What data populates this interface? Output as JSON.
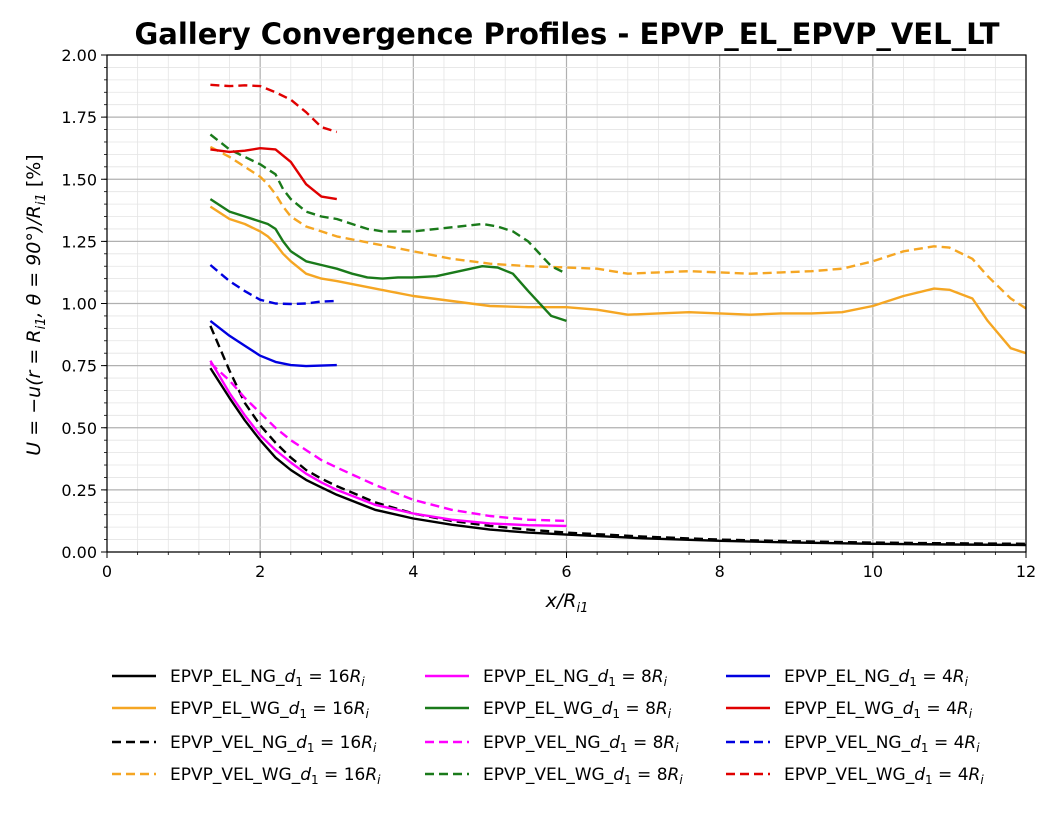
{
  "chart_data": {
    "type": "line",
    "title": "Gallery Convergence Profiles - EPVP_EL_EPVP_VEL_LT",
    "xlabel": "x/R_i1",
    "ylabel": "U = −u(r = R_i1, θ = 90°)/R_i1 [%]",
    "xlim": [
      0,
      12
    ],
    "ylim": [
      0,
      2.0
    ],
    "xticks": [
      0,
      2,
      4,
      6,
      8,
      10,
      12
    ],
    "yticks": [
      0.0,
      0.25,
      0.5,
      0.75,
      1.0,
      1.25,
      1.5,
      1.75,
      2.0
    ],
    "xtick_labels": [
      "0",
      "2",
      "4",
      "6",
      "8",
      "10",
      "12"
    ],
    "ytick_labels": [
      "0.00",
      "0.25",
      "0.50",
      "0.75",
      "1.00",
      "1.25",
      "1.50",
      "1.75",
      "2.00"
    ],
    "grid": true,
    "legend_position": "bottom",
    "series": [
      {
        "name": "EPVP_EL_NG_d1 = 16Ri",
        "color": "#000000",
        "dash": "solid",
        "x": [
          1.35,
          1.6,
          1.8,
          2.0,
          2.2,
          2.4,
          2.6,
          2.8,
          3.0,
          3.5,
          4.0,
          4.5,
          5.0,
          5.5,
          6.0,
          7.0,
          8.0,
          9.0,
          10.0,
          11.0,
          12.0
        ],
        "values": [
          0.74,
          0.62,
          0.53,
          0.45,
          0.38,
          0.33,
          0.29,
          0.26,
          0.23,
          0.17,
          0.135,
          0.11,
          0.09,
          0.078,
          0.07,
          0.055,
          0.045,
          0.038,
          0.033,
          0.03,
          0.028
        ]
      },
      {
        "name": "EPVP_EL_WG_d1 = 16Ri",
        "color": "#f5a623",
        "dash": "solid",
        "x": [
          1.35,
          1.6,
          1.8,
          2.0,
          2.1,
          2.2,
          2.3,
          2.4,
          2.6,
          2.8,
          3.0,
          3.5,
          4.0,
          4.5,
          5.0,
          5.5,
          6.0,
          6.4,
          6.8,
          7.2,
          7.6,
          8.0,
          8.4,
          8.8,
          9.2,
          9.6,
          10.0,
          10.4,
          10.8,
          11.0,
          11.3,
          11.5,
          11.8,
          12.0
        ],
        "values": [
          1.39,
          1.34,
          1.32,
          1.29,
          1.27,
          1.24,
          1.2,
          1.17,
          1.12,
          1.1,
          1.09,
          1.06,
          1.03,
          1.01,
          0.99,
          0.985,
          0.985,
          0.975,
          0.955,
          0.96,
          0.965,
          0.96,
          0.955,
          0.96,
          0.96,
          0.965,
          0.99,
          1.03,
          1.06,
          1.055,
          1.02,
          0.93,
          0.82,
          0.8
        ]
      },
      {
        "name": "EPVP_VEL_NG_d1 = 16Ri",
        "color": "#000000",
        "dash": "dashed",
        "x": [
          1.35,
          1.6,
          1.8,
          2.0,
          2.2,
          2.4,
          2.6,
          2.8,
          3.0,
          3.5,
          4.0,
          4.5,
          5.0,
          5.5,
          6.0,
          7.0,
          8.0,
          9.0,
          10.0,
          11.0,
          12.0
        ],
        "values": [
          0.91,
          0.73,
          0.6,
          0.51,
          0.44,
          0.38,
          0.33,
          0.295,
          0.265,
          0.2,
          0.155,
          0.125,
          0.105,
          0.09,
          0.078,
          0.062,
          0.05,
          0.043,
          0.038,
          0.035,
          0.033
        ]
      },
      {
        "name": "EPVP_VEL_WG_d1 = 16Ri",
        "color": "#f5a623",
        "dash": "dashed",
        "x": [
          1.35,
          1.6,
          1.8,
          2.0,
          2.1,
          2.2,
          2.3,
          2.4,
          2.6,
          2.8,
          3.0,
          3.5,
          4.0,
          4.5,
          5.0,
          5.5,
          6.0,
          6.4,
          6.8,
          7.2,
          7.6,
          8.0,
          8.4,
          8.8,
          9.2,
          9.6,
          10.0,
          10.4,
          10.8,
          11.0,
          11.3,
          11.5,
          11.8,
          12.0
        ],
        "values": [
          1.63,
          1.59,
          1.55,
          1.51,
          1.48,
          1.44,
          1.39,
          1.35,
          1.31,
          1.29,
          1.27,
          1.24,
          1.21,
          1.18,
          1.16,
          1.15,
          1.145,
          1.14,
          1.12,
          1.125,
          1.13,
          1.125,
          1.12,
          1.125,
          1.13,
          1.14,
          1.17,
          1.21,
          1.23,
          1.225,
          1.18,
          1.11,
          1.02,
          0.98
        ]
      },
      {
        "name": "EPVP_EL_NG_d1 = 8Ri",
        "color": "#ff00ff",
        "dash": "solid",
        "x": [
          1.35,
          1.6,
          1.8,
          2.0,
          2.2,
          2.4,
          2.6,
          2.8,
          3.0,
          3.5,
          4.0,
          4.5,
          5.0,
          5.5,
          6.0
        ],
        "values": [
          0.77,
          0.64,
          0.55,
          0.47,
          0.41,
          0.36,
          0.315,
          0.28,
          0.25,
          0.19,
          0.155,
          0.13,
          0.115,
          0.108,
          0.105
        ]
      },
      {
        "name": "EPVP_EL_WG_d1 = 8Ri",
        "color": "#1a7a1a",
        "dash": "solid",
        "x": [
          1.35,
          1.6,
          1.8,
          2.0,
          2.1,
          2.2,
          2.3,
          2.4,
          2.6,
          2.8,
          3.0,
          3.2,
          3.4,
          3.6,
          3.8,
          4.0,
          4.3,
          4.6,
          4.9,
          5.1,
          5.3,
          5.5,
          5.8,
          6.0
        ],
        "values": [
          1.42,
          1.37,
          1.35,
          1.33,
          1.32,
          1.3,
          1.25,
          1.21,
          1.17,
          1.155,
          1.14,
          1.12,
          1.105,
          1.1,
          1.105,
          1.105,
          1.11,
          1.13,
          1.15,
          1.145,
          1.12,
          1.05,
          0.95,
          0.93
        ]
      },
      {
        "name": "EPVP_VEL_NG_d1 = 8Ri",
        "color": "#ff00ff",
        "dash": "dashed",
        "x": [
          1.35,
          1.6,
          1.8,
          2.0,
          2.2,
          2.4,
          2.6,
          2.8,
          3.0,
          3.5,
          4.0,
          4.5,
          5.0,
          5.5,
          6.0
        ],
        "values": [
          0.76,
          0.69,
          0.62,
          0.56,
          0.5,
          0.45,
          0.41,
          0.37,
          0.34,
          0.27,
          0.21,
          0.17,
          0.145,
          0.13,
          0.125
        ]
      },
      {
        "name": "EPVP_VEL_WG_d1 = 8Ri",
        "color": "#1a7a1a",
        "dash": "dashed",
        "x": [
          1.35,
          1.6,
          1.8,
          2.0,
          2.1,
          2.2,
          2.3,
          2.4,
          2.6,
          2.8,
          3.0,
          3.2,
          3.4,
          3.6,
          3.8,
          4.0,
          4.3,
          4.6,
          4.9,
          5.1,
          5.3,
          5.5,
          5.8,
          6.0
        ],
        "values": [
          1.68,
          1.62,
          1.59,
          1.56,
          1.54,
          1.52,
          1.46,
          1.42,
          1.37,
          1.35,
          1.34,
          1.32,
          1.3,
          1.29,
          1.29,
          1.29,
          1.3,
          1.31,
          1.32,
          1.31,
          1.29,
          1.25,
          1.15,
          1.12
        ]
      },
      {
        "name": "EPVP_EL_NG_d1 = 4Ri",
        "color": "#0000e0",
        "dash": "solid",
        "x": [
          1.35,
          1.6,
          1.8,
          2.0,
          2.2,
          2.4,
          2.6,
          2.8,
          3.0
        ],
        "values": [
          0.93,
          0.87,
          0.83,
          0.79,
          0.765,
          0.752,
          0.748,
          0.75,
          0.752
        ]
      },
      {
        "name": "EPVP_EL_WG_d1 = 4Ri",
        "color": "#e00000",
        "dash": "solid",
        "x": [
          1.35,
          1.6,
          1.8,
          2.0,
          2.2,
          2.4,
          2.6,
          2.8,
          3.0
        ],
        "values": [
          1.62,
          1.61,
          1.615,
          1.625,
          1.62,
          1.57,
          1.48,
          1.43,
          1.42
        ]
      },
      {
        "name": "EPVP_VEL_NG_d1 = 4Ri",
        "color": "#0000e0",
        "dash": "dashed",
        "x": [
          1.35,
          1.6,
          1.8,
          2.0,
          2.2,
          2.4,
          2.6,
          2.8,
          3.0
        ],
        "values": [
          1.155,
          1.09,
          1.05,
          1.015,
          1.0,
          0.998,
          1.0,
          1.008,
          1.01
        ]
      },
      {
        "name": "EPVP_VEL_WG_d1 = 4Ri",
        "color": "#e00000",
        "dash": "dashed",
        "x": [
          1.35,
          1.6,
          1.8,
          2.0,
          2.2,
          2.4,
          2.6,
          2.8,
          3.0
        ],
        "values": [
          1.88,
          1.875,
          1.878,
          1.875,
          1.85,
          1.82,
          1.77,
          1.71,
          1.69
        ]
      }
    ]
  }
}
